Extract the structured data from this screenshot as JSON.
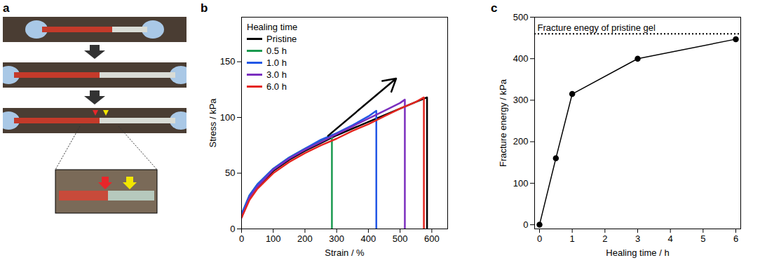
{
  "photo_panel": {
    "panel": "a"
  },
  "chart_data": [
    {
      "panel": "b",
      "type": "line",
      "x_label": "Strain / %",
      "y_label": "Stress / kPa",
      "legend_title": "Healing time",
      "legend": "top-left",
      "xlim": [
        0,
        650
      ],
      "xticks": [
        0,
        100,
        200,
        300,
        400,
        500,
        600
      ],
      "ylim": [
        0,
        190
      ],
      "yticks": [
        0,
        50,
        100,
        150
      ],
      "series": [
        {
          "name": "Pristine",
          "color": "#000000",
          "x": [
            0,
            25,
            50,
            100,
            150,
            200,
            250,
            300,
            350,
            400,
            450,
            500,
            550,
            585,
            585
          ],
          "values": [
            12,
            28,
            37,
            52,
            62,
            70,
            77,
            84,
            90,
            96,
            102,
            108,
            114,
            118,
            0
          ]
        },
        {
          "name": "0.5 h",
          "color": "#1a9a50",
          "x": [
            0,
            25,
            50,
            100,
            150,
            200,
            250,
            285,
            285
          ],
          "values": [
            13,
            30,
            40,
            54,
            64,
            72,
            79,
            84,
            0
          ]
        },
        {
          "name": "1.0 h",
          "color": "#2257e6",
          "x": [
            0,
            25,
            50,
            100,
            150,
            200,
            250,
            300,
            350,
            400,
            425,
            425
          ],
          "values": [
            13,
            30,
            40,
            54,
            64,
            72,
            80,
            86,
            93,
            101,
            106,
            0
          ]
        },
        {
          "name": "3.0 h",
          "color": "#7b2fbf",
          "x": [
            0,
            25,
            50,
            100,
            150,
            200,
            250,
            300,
            350,
            400,
            450,
            500,
            515,
            515
          ],
          "values": [
            10,
            28,
            38,
            53,
            63,
            71,
            78,
            85,
            92,
            99,
            106,
            113,
            116,
            0
          ]
        },
        {
          "name": "6.0 h",
          "color": "#e5261f",
          "x": [
            0,
            25,
            50,
            100,
            150,
            200,
            250,
            300,
            350,
            400,
            450,
            500,
            550,
            575,
            575
          ],
          "values": [
            10,
            26,
            36,
            50,
            60,
            68,
            75,
            81,
            88,
            94,
            101,
            108,
            114,
            118,
            0
          ]
        }
      ]
    },
    {
      "panel": "c",
      "type": "line",
      "marker": "circle",
      "color": "#000000",
      "x_label": "Healing time / h",
      "y_label": "Fracture energy / kPa",
      "x": [
        0,
        0.5,
        1,
        3,
        6
      ],
      "values": [
        0,
        160,
        315,
        400,
        447
      ],
      "xlim": [
        -0.15,
        6.15
      ],
      "xticks": [
        0,
        1,
        2,
        3,
        4,
        5,
        6
      ],
      "ylim": [
        -10,
        500
      ],
      "yticks": [
        0,
        100,
        200,
        300,
        400,
        500
      ],
      "reference_line": {
        "value": 460,
        "label": "Fracture enegy of pristine gel",
        "line_style": "dotted"
      }
    }
  ]
}
